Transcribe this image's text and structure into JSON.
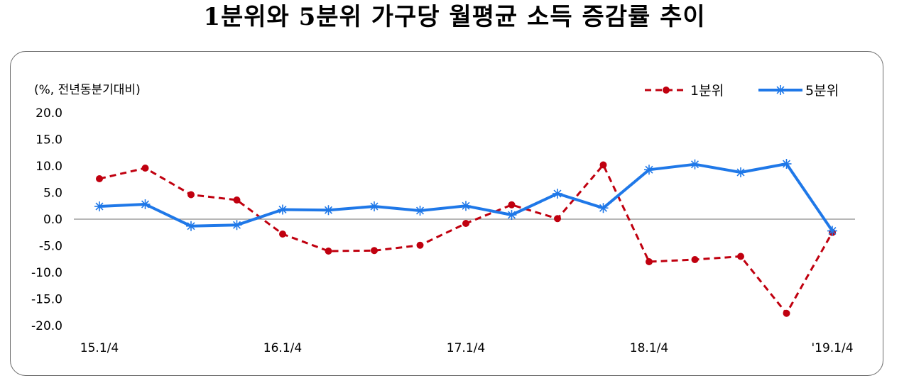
{
  "title": "1분위와 5분위 가구당 월평균 소득 증감률 추이",
  "chart_data": {
    "type": "line",
    "unit_label": "(%, 전년동분기대비)",
    "x_tick_labels": [
      {
        "index": 0,
        "label": "15.1/4"
      },
      {
        "index": 4,
        "label": "16.1/4"
      },
      {
        "index": 8,
        "label": "17.1/4"
      },
      {
        "index": 12,
        "label": "18.1/4"
      },
      {
        "index": 16,
        "label": "'19.1/4"
      }
    ],
    "y_ticks": [
      "20.0",
      "15.0",
      "10.0",
      "5.0",
      "0.0",
      "-5.0",
      "-10.0",
      "-15.0",
      "-20.0"
    ],
    "ylim": [
      -20,
      20
    ],
    "legend_position": "top-right",
    "series": [
      {
        "name": "1분위",
        "color": "#c0000f",
        "style": "dashed-dot-markers",
        "values": [
          7.6,
          9.6,
          4.6,
          3.6,
          -2.8,
          -6.0,
          -5.9,
          -4.9,
          -0.8,
          2.7,
          0.1,
          10.2,
          -8.0,
          -7.6,
          -7.0,
          -17.7,
          -2.5
        ]
      },
      {
        "name": "5분위",
        "color": "#1f78e8",
        "style": "solid-asterisk-markers",
        "values": [
          2.4,
          2.8,
          -1.3,
          -1.1,
          1.8,
          1.7,
          2.4,
          1.6,
          2.5,
          0.8,
          4.8,
          2.1,
          9.3,
          10.3,
          8.8,
          10.4,
          -2.2
        ]
      }
    ]
  }
}
